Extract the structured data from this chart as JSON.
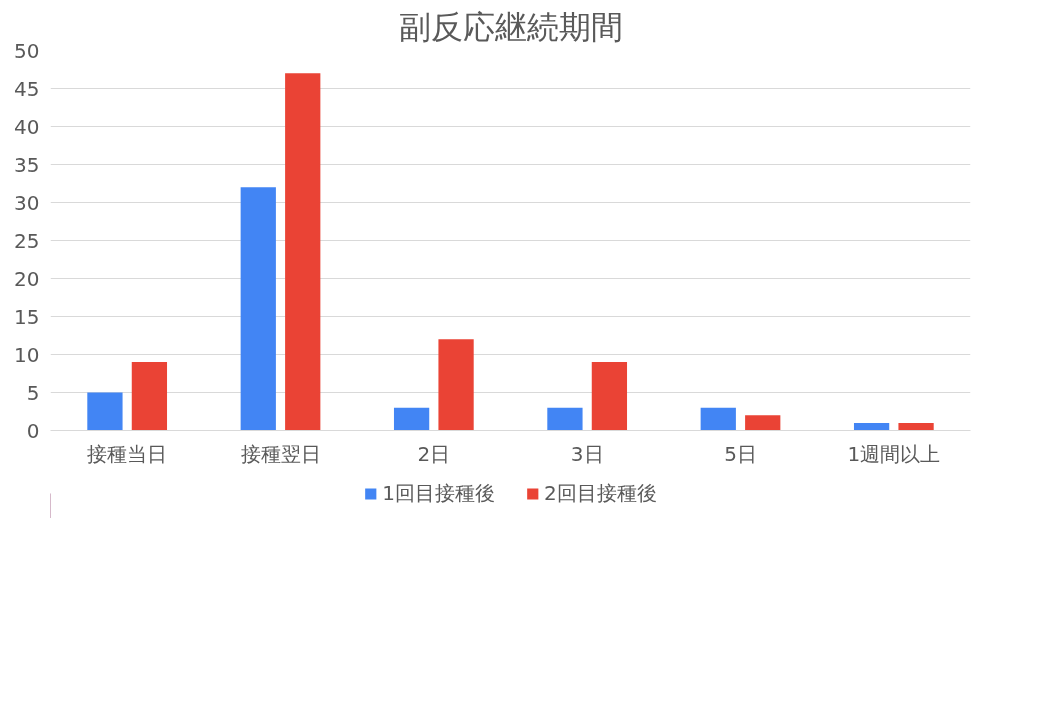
{
  "chart_data": {
    "type": "bar",
    "title": "副反応継続期間",
    "categories": [
      "接種当日",
      "接種翌日",
      "2日",
      "3日",
      "5日",
      "1週間以上"
    ],
    "series": [
      {
        "name": "1回目接種後",
        "color": "#4285f4",
        "values": [
          5,
          32,
          3,
          3,
          3,
          1
        ]
      },
      {
        "name": "2回目接種後",
        "color": "#ea4335",
        "values": [
          9,
          47,
          12,
          9,
          2,
          1
        ]
      }
    ],
    "ylim": [
      0,
      50
    ],
    "yticks": [
      0,
      5,
      10,
      15,
      20,
      25,
      30,
      35,
      40,
      45,
      50
    ],
    "grid": "y",
    "legend": "bottom"
  }
}
